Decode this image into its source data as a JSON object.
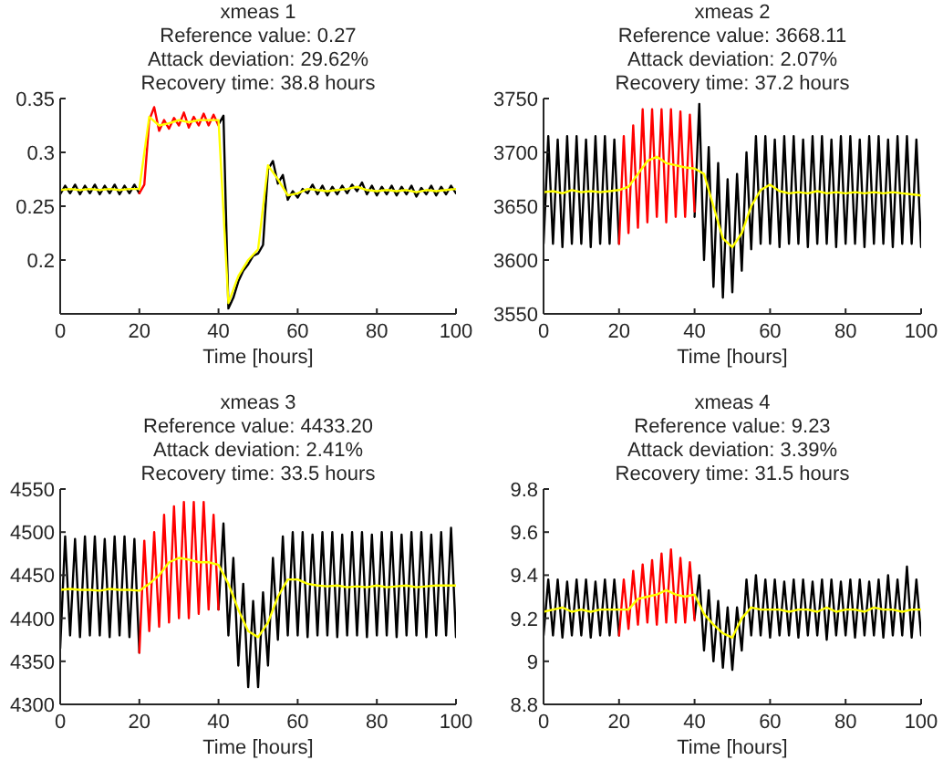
{
  "chart_data": [
    {
      "type": "line",
      "title": "xmeas 1",
      "annotations": [
        "Reference value: 0.27",
        "Attack deviation: 29.62%",
        "Recovery time: 38.8 hours"
      ],
      "xlabel": "Time [hours]",
      "xlim": [
        0,
        100
      ],
      "xticks": [
        0,
        20,
        40,
        60,
        80,
        100
      ],
      "ylim": [
        0.15,
        0.35
      ],
      "yticks": [
        0.2,
        0.25,
        0.3,
        0.35
      ],
      "grid": false,
      "x": [
        0,
        2.5,
        5,
        7.5,
        10,
        12.5,
        15,
        17.5,
        20,
        22.5,
        25,
        27.5,
        30,
        32.5,
        35,
        37.5,
        40,
        42.5,
        45,
        47.5,
        50,
        52.5,
        55,
        57.5,
        60,
        62.5,
        65,
        67.5,
        70,
        72.5,
        75,
        77.5,
        80,
        82.5,
        85,
        87.5,
        90,
        92.5,
        95,
        97.5,
        100
      ],
      "series": [
        {
          "color": "#000000",
          "x": [
            0,
            1.25,
            2.5,
            3.75,
            5,
            6.25,
            7.5,
            8.75,
            10,
            11.25,
            12.5,
            13.75,
            15,
            16.25,
            17.5,
            18.75,
            20,
            30,
            40,
            41.25,
            42.5,
            43.75,
            45,
            46.25,
            47.5,
            48.75,
            50,
            51.25,
            52.5,
            53.75,
            55,
            56.25,
            57.5,
            58.75,
            60,
            61.25,
            62.5,
            63.75,
            65,
            66.25,
            67.5,
            68.75,
            70,
            71.25,
            72.5,
            73.75,
            75,
            76.25,
            77.5,
            78.75,
            80,
            81.25,
            82.5,
            83.75,
            85,
            86.25,
            87.5,
            88.75,
            90,
            91.25,
            92.5,
            93.75,
            95,
            96.25,
            97.5,
            98.75,
            100
          ],
          "values": [
            0.261,
            0.269,
            0.262,
            0.27,
            0.261,
            0.269,
            0.262,
            0.27,
            0.261,
            0.269,
            0.262,
            0.27,
            0.261,
            0.269,
            0.262,
            0.27,
            0.262,
            null,
            0.326,
            0.334,
            0.155,
            0.165,
            0.18,
            0.19,
            0.196,
            0.204,
            0.206,
            0.214,
            0.284,
            0.292,
            0.271,
            0.279,
            0.256,
            0.264,
            0.258,
            0.266,
            0.262,
            0.27,
            0.261,
            0.269,
            0.26,
            0.268,
            0.261,
            0.269,
            0.262,
            0.27,
            0.264,
            0.272,
            0.261,
            0.269,
            0.26,
            0.268,
            0.261,
            0.269,
            0.26,
            0.268,
            0.261,
            0.269,
            0.259,
            0.267,
            0.261,
            0.269,
            0.26,
            0.268,
            0.261,
            0.269,
            0.262
          ]
        },
        {
          "color": "#ff0000",
          "x": [
            20,
            21.25,
            22.5,
            23.75,
            25,
            26.25,
            27.5,
            28.75,
            30,
            31.25,
            32.5,
            33.75,
            35,
            36.25,
            37.5,
            38.75,
            40
          ],
          "values": [
            0.262,
            0.27,
            0.33,
            0.342,
            0.32,
            0.33,
            0.322,
            0.332,
            0.325,
            0.337,
            0.323,
            0.333,
            0.325,
            0.336,
            0.325,
            0.335,
            0.325
          ]
        },
        {
          "color": "#ffff00",
          "values": [
            0.265,
            0.266,
            0.265,
            0.266,
            0.265,
            0.266,
            0.265,
            0.266,
            0.266,
            0.333,
            0.325,
            0.327,
            0.33,
            0.328,
            0.33,
            0.33,
            0.33,
            0.16,
            0.185,
            0.2,
            0.21,
            0.288,
            0.275,
            0.26,
            0.262,
            0.266,
            0.265,
            0.264,
            0.265,
            0.266,
            0.268,
            0.265,
            0.264,
            0.265,
            0.264,
            0.265,
            0.263,
            0.265,
            0.264,
            0.265,
            0.266
          ]
        }
      ]
    },
    {
      "type": "line",
      "title": "xmeas 2",
      "annotations": [
        "Reference value: 3668.11",
        "Attack deviation: 2.07%",
        "Recovery time: 37.2 hours"
      ],
      "xlabel": "Time [hours]",
      "xlim": [
        0,
        100
      ],
      "xticks": [
        0,
        20,
        40,
        60,
        80,
        100
      ],
      "ylim": [
        3550,
        3750
      ],
      "yticks": [
        3550,
        3600,
        3650,
        3700,
        3750
      ],
      "grid": false,
      "x": [
        0,
        2.5,
        5,
        7.5,
        10,
        12.5,
        15,
        17.5,
        20,
        22.5,
        25,
        27.5,
        30,
        32.5,
        35,
        37.5,
        40,
        42.5,
        45,
        47.5,
        50,
        52.5,
        55,
        57.5,
        60,
        62.5,
        65,
        67.5,
        70,
        72.5,
        75,
        77.5,
        80,
        82.5,
        85,
        87.5,
        90,
        92.5,
        95,
        97.5,
        100
      ],
      "series": [
        {
          "color": "#000000",
          "x": [
            0,
            1.25,
            2.5,
            3.75,
            5,
            6.25,
            7.5,
            8.75,
            10,
            11.25,
            12.5,
            13.75,
            15,
            16.25,
            17.5,
            18.75,
            20,
            30,
            40,
            41.25,
            42.5,
            43.75,
            45,
            46.25,
            47.5,
            48.75,
            50,
            51.25,
            52.5,
            53.75,
            55,
            56.25,
            57.5,
            58.75,
            60,
            61.25,
            62.5,
            63.75,
            65,
            66.25,
            67.5,
            68.75,
            70,
            71.25,
            72.5,
            73.75,
            75,
            76.25,
            77.5,
            78.75,
            80,
            81.25,
            82.5,
            83.75,
            85,
            86.25,
            87.5,
            88.75,
            90,
            91.25,
            92.5,
            93.75,
            95,
            96.25,
            97.5,
            98.75,
            100
          ],
          "values": [
            3615,
            3715,
            3615,
            3712,
            3612,
            3715,
            3615,
            3715,
            3615,
            3712,
            3612,
            3715,
            3615,
            3715,
            3615,
            3712,
            3615,
            null,
            3640,
            3745,
            3600,
            3705,
            3575,
            3690,
            3565,
            3675,
            3570,
            3680,
            3590,
            3700,
            3610,
            3715,
            3615,
            3715,
            3615,
            3712,
            3612,
            3715,
            3615,
            3715,
            3615,
            3712,
            3612,
            3715,
            3615,
            3715,
            3615,
            3712,
            3612,
            3715,
            3615,
            3715,
            3615,
            3712,
            3612,
            3715,
            3615,
            3715,
            3615,
            3712,
            3612,
            3715,
            3615,
            3715,
            3615,
            3712,
            3612
          ]
        },
        {
          "color": "#ff0000",
          "x": [
            20,
            21.25,
            22.5,
            23.75,
            25,
            26.25,
            27.5,
            28.75,
            30,
            31.25,
            32.5,
            33.75,
            35,
            36.25,
            37.5,
            38.75,
            40
          ],
          "values": [
            3615,
            3715,
            3625,
            3725,
            3630,
            3740,
            3635,
            3740,
            3640,
            3740,
            3635,
            3740,
            3640,
            3738,
            3640,
            3735,
            3645
          ]
        },
        {
          "color": "#ffff00",
          "values": [
            3663,
            3664,
            3662,
            3665,
            3663,
            3664,
            3663,
            3664,
            3665,
            3668,
            3680,
            3692,
            3696,
            3690,
            3688,
            3686,
            3685,
            3680,
            3650,
            3620,
            3612,
            3625,
            3650,
            3665,
            3670,
            3664,
            3662,
            3663,
            3662,
            3664,
            3662,
            3663,
            3662,
            3663,
            3662,
            3663,
            3662,
            3663,
            3662,
            3661,
            3660
          ]
        }
      ]
    },
    {
      "type": "line",
      "title": "xmeas 3",
      "annotations": [
        "Reference value: 4433.20",
        "Attack deviation: 2.41%",
        "Recovery time: 33.5 hours"
      ],
      "xlabel": "Time [hours]",
      "xlim": [
        0,
        100
      ],
      "xticks": [
        0,
        20,
        40,
        60,
        80,
        100
      ],
      "ylim": [
        4300,
        4550
      ],
      "yticks": [
        4300,
        4350,
        4400,
        4450,
        4500,
        4550
      ],
      "grid": false,
      "x": [
        0,
        2.5,
        5,
        7.5,
        10,
        12.5,
        15,
        17.5,
        20,
        22.5,
        25,
        27.5,
        30,
        32.5,
        35,
        37.5,
        40,
        42.5,
        45,
        47.5,
        50,
        52.5,
        55,
        57.5,
        60,
        62.5,
        65,
        67.5,
        70,
        72.5,
        75,
        77.5,
        80,
        82.5,
        85,
        87.5,
        90,
        92.5,
        95,
        97.5,
        100
      ],
      "series": [
        {
          "color": "#000000",
          "x": [
            0,
            1.25,
            2.5,
            3.75,
            5,
            6.25,
            7.5,
            8.75,
            10,
            11.25,
            12.5,
            13.75,
            15,
            16.25,
            17.5,
            18.75,
            20,
            30,
            40,
            41.25,
            42.5,
            43.75,
            45,
            46.25,
            47.5,
            48.75,
            50,
            51.25,
            52.5,
            53.75,
            55,
            56.25,
            57.5,
            58.75,
            60,
            61.25,
            62.5,
            63.75,
            65,
            66.25,
            67.5,
            68.75,
            70,
            71.25,
            72.5,
            73.75,
            75,
            76.25,
            77.5,
            78.75,
            80,
            81.25,
            82.5,
            83.75,
            85,
            86.25,
            87.5,
            88.75,
            90,
            91.25,
            92.5,
            93.75,
            95,
            96.25,
            97.5,
            98.75,
            100
          ],
          "values": [
            4365,
            4495,
            4380,
            4492,
            4378,
            4495,
            4380,
            4495,
            4380,
            4492,
            4378,
            4495,
            4380,
            4495,
            4378,
            4492,
            4360,
            null,
            4410,
            4510,
            4380,
            4470,
            4345,
            4440,
            4320,
            4420,
            4320,
            4430,
            4345,
            4470,
            4375,
            4495,
            4380,
            4500,
            4380,
            4500,
            4378,
            4497,
            4380,
            4500,
            4380,
            4500,
            4378,
            4497,
            4380,
            4500,
            4380,
            4500,
            4378,
            4497,
            4380,
            4500,
            4380,
            4500,
            4378,
            4497,
            4380,
            4500,
            4380,
            4500,
            4378,
            4497,
            4380,
            4500,
            4380,
            4505,
            4378
          ]
        },
        {
          "color": "#ff0000",
          "x": [
            20,
            21.25,
            22.5,
            23.75,
            25,
            26.25,
            27.5,
            28.75,
            30,
            31.25,
            32.5,
            33.75,
            35,
            36.25,
            37.5,
            38.75,
            40
          ],
          "values": [
            4360,
            4490,
            4385,
            4500,
            4390,
            4520,
            4395,
            4530,
            4400,
            4535,
            4400,
            4535,
            4405,
            4535,
            4410,
            4520,
            4410
          ]
        },
        {
          "color": "#ffff00",
          "values": [
            4433,
            4434,
            4433,
            4433,
            4432,
            4434,
            4433,
            4433,
            4432,
            4440,
            4450,
            4465,
            4470,
            4468,
            4465,
            4465,
            4462,
            4440,
            4410,
            4385,
            4378,
            4395,
            4425,
            4445,
            4445,
            4440,
            4438,
            4437,
            4438,
            4436,
            4437,
            4436,
            4438,
            4436,
            4437,
            4438,
            4436,
            4437,
            4438,
            4438,
            4438
          ]
        }
      ]
    },
    {
      "type": "line",
      "title": "xmeas 4",
      "annotations": [
        "Reference value: 9.23",
        "Attack deviation: 3.39%",
        "Recovery time: 31.5 hours"
      ],
      "xlabel": "Time [hours]",
      "xlim": [
        0,
        100
      ],
      "xticks": [
        0,
        20,
        40,
        60,
        80,
        100
      ],
      "ylim": [
        8.8,
        9.8
      ],
      "yticks": [
        8.8,
        9,
        9.2,
        9.4,
        9.6,
        9.8
      ],
      "grid": false,
      "x": [
        0,
        2.5,
        5,
        7.5,
        10,
        12.5,
        15,
        17.5,
        20,
        22.5,
        25,
        27.5,
        30,
        32.5,
        35,
        37.5,
        40,
        42.5,
        45,
        47.5,
        50,
        52.5,
        55,
        57.5,
        60,
        62.5,
        65,
        67.5,
        70,
        72.5,
        75,
        77.5,
        80,
        82.5,
        85,
        87.5,
        90,
        92.5,
        95,
        97.5,
        100
      ],
      "series": [
        {
          "color": "#000000",
          "x": [
            0,
            1.25,
            2.5,
            3.75,
            5,
            6.25,
            7.5,
            8.75,
            10,
            11.25,
            12.5,
            13.75,
            15,
            16.25,
            17.5,
            18.75,
            20,
            30,
            40,
            41.25,
            42.5,
            43.75,
            45,
            46.25,
            47.5,
            48.75,
            50,
            51.25,
            52.5,
            53.75,
            55,
            56.25,
            57.5,
            58.75,
            60,
            61.25,
            62.5,
            63.75,
            65,
            66.25,
            67.5,
            68.75,
            70,
            71.25,
            72.5,
            73.75,
            75,
            76.25,
            77.5,
            78.75,
            80,
            81.25,
            82.5,
            83.75,
            85,
            86.25,
            87.5,
            88.75,
            90,
            91.25,
            92.5,
            93.75,
            95,
            96.25,
            97.5,
            98.75,
            100
          ],
          "values": [
            9.12,
            9.38,
            9.12,
            9.38,
            9.11,
            9.37,
            9.12,
            9.38,
            9.12,
            9.38,
            9.11,
            9.37,
            9.12,
            9.38,
            9.12,
            9.38,
            9.12,
            null,
            9.2,
            9.4,
            9.05,
            9.33,
            9.0,
            9.28,
            8.97,
            9.25,
            8.96,
            9.25,
            9.05,
            9.38,
            9.12,
            9.4,
            9.12,
            9.38,
            9.11,
            9.38,
            9.12,
            9.37,
            9.12,
            9.38,
            9.11,
            9.38,
            9.12,
            9.37,
            9.12,
            9.38,
            9.1,
            9.38,
            9.12,
            9.37,
            9.12,
            9.38,
            9.11,
            9.38,
            9.12,
            9.37,
            9.12,
            9.38,
            9.11,
            9.4,
            9.12,
            9.38,
            9.12,
            9.44,
            9.11,
            9.38,
            9.12
          ]
        },
        {
          "color": "#ff0000",
          "x": [
            20,
            21.25,
            22.5,
            23.75,
            25,
            26.25,
            27.5,
            28.75,
            30,
            31.25,
            32.5,
            33.75,
            35,
            36.25,
            37.5,
            38.75,
            40
          ],
          "values": [
            9.12,
            9.38,
            9.15,
            9.42,
            9.17,
            9.45,
            9.18,
            9.47,
            9.17,
            9.5,
            9.18,
            9.52,
            9.18,
            9.48,
            9.18,
            9.46,
            9.19
          ]
        },
        {
          "color": "#ffff00",
          "values": [
            9.23,
            9.24,
            9.25,
            9.23,
            9.24,
            9.23,
            9.24,
            9.24,
            9.24,
            9.24,
            9.29,
            9.3,
            9.31,
            9.33,
            9.31,
            9.3,
            9.31,
            9.22,
            9.17,
            9.13,
            9.11,
            9.2,
            9.25,
            9.24,
            9.24,
            9.24,
            9.23,
            9.24,
            9.24,
            9.23,
            9.25,
            9.23,
            9.24,
            9.24,
            9.23,
            9.25,
            9.24,
            9.24,
            9.23,
            9.24,
            9.24
          ]
        }
      ]
    }
  ]
}
